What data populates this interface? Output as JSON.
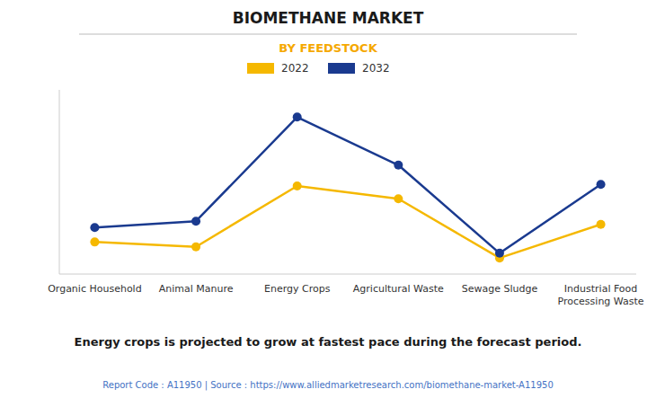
{
  "chart_data": {
    "type": "line",
    "title": "BIOMETHANE MARKET",
    "subtitle": "BY FEEDSTOCK",
    "categories": [
      "Organic Household",
      "Animal Manure",
      "Energy Crops",
      "Agricultural Waste",
      "Sewage Sludge",
      "Industrial Food\nProcessing Waste"
    ],
    "series": [
      {
        "name": "2022",
        "color": "#F5B800",
        "marker": "circle",
        "values": [
          2.0,
          1.7,
          5.5,
          4.7,
          1.0,
          3.1
        ]
      },
      {
        "name": "2032",
        "color": "#1A3A8F",
        "marker": "circle",
        "values": [
          2.9,
          3.3,
          9.8,
          6.8,
          1.3,
          5.6
        ]
      }
    ],
    "ylim": [
      0,
      11.5
    ],
    "yticks": [],
    "grid": false,
    "tick_labels": "x",
    "legend": "top",
    "annotations": [
      "Energy crops is projected to grow at fastest pace during the forecast period.",
      "Report Code : A11950  |  Source : https://www.alliedmarketresearch.com/biomethane-market-A11950"
    ]
  }
}
